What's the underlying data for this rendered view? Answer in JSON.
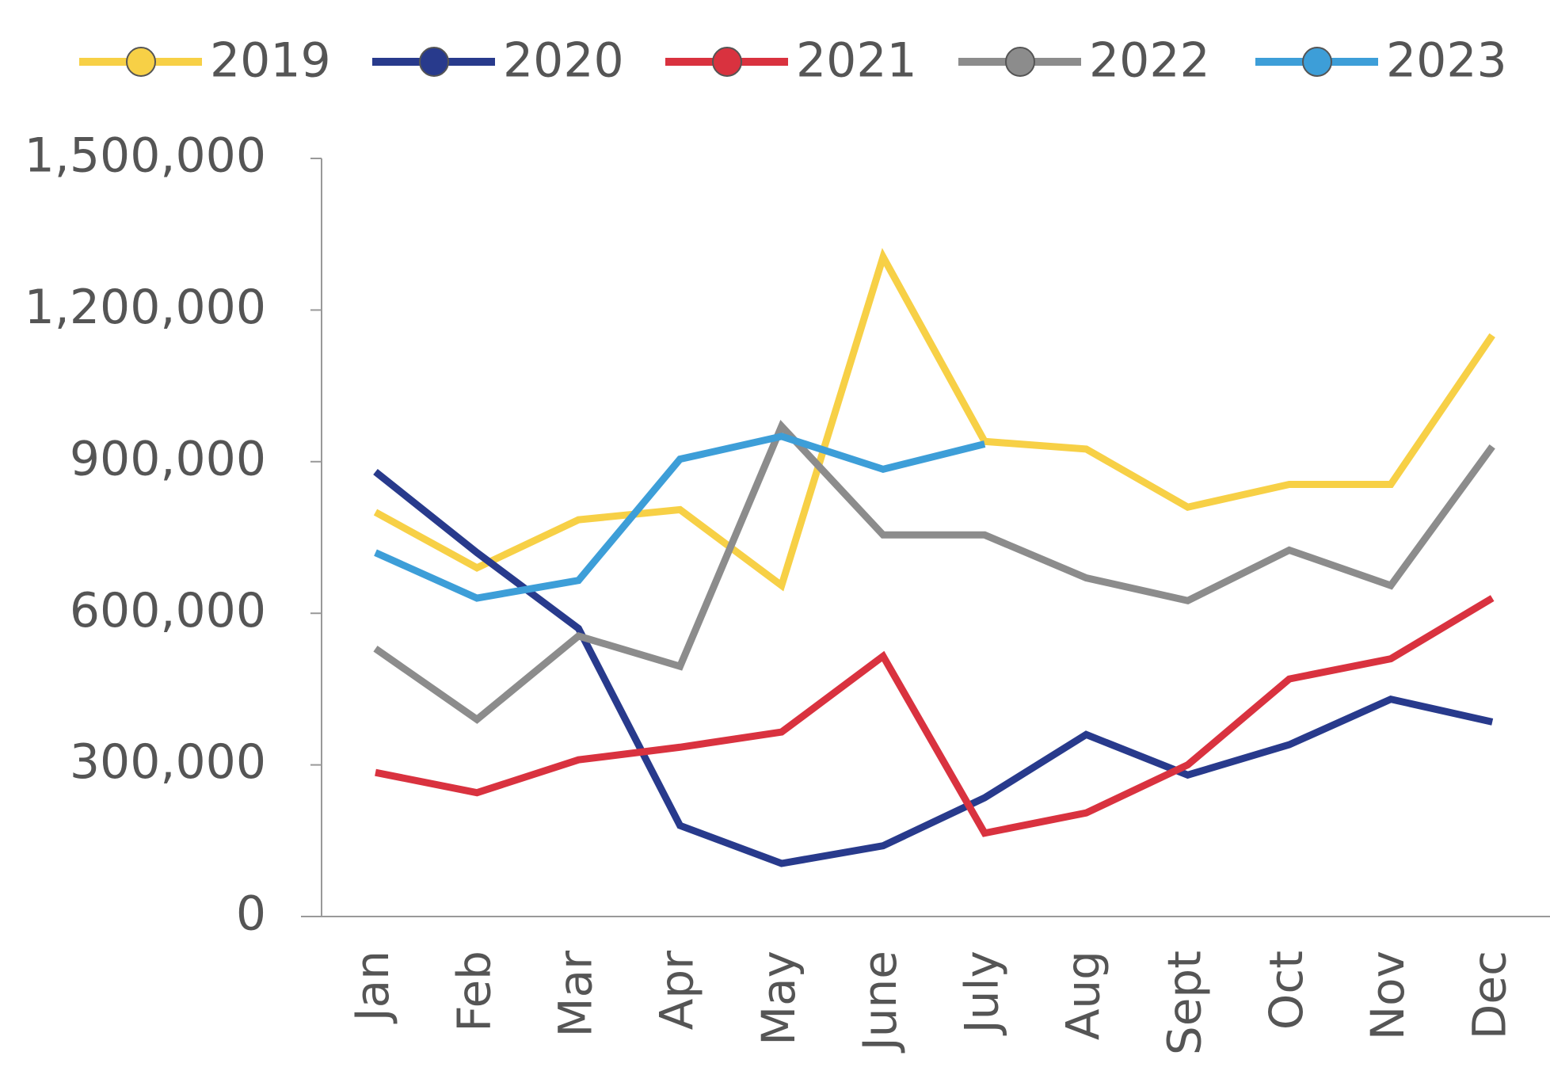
{
  "chart_data": {
    "type": "line",
    "categories": [
      "Jan",
      "Feb",
      "Mar",
      "Apr",
      "May",
      "June",
      "July",
      "Aug",
      "Sept",
      "Oct",
      "Nov",
      "Dec"
    ],
    "series": [
      {
        "name": "2019",
        "color": "#f7d046",
        "values": [
          800000,
          690000,
          785000,
          805000,
          655000,
          1305000,
          940000,
          925000,
          810000,
          855000,
          855000,
          1150000
        ]
      },
      {
        "name": "2020",
        "color": "#283a8c",
        "values": [
          880000,
          720000,
          570000,
          180000,
          105000,
          140000,
          235000,
          360000,
          280000,
          340000,
          430000,
          385000
        ]
      },
      {
        "name": "2021",
        "color": "#d9323f",
        "values": [
          285000,
          245000,
          310000,
          335000,
          365000,
          515000,
          165000,
          205000,
          300000,
          470000,
          510000,
          630000
        ]
      },
      {
        "name": "2022",
        "color": "#8c8c8c",
        "values": [
          530000,
          390000,
          555000,
          495000,
          970000,
          755000,
          755000,
          670000,
          625000,
          725000,
          655000,
          930000
        ]
      },
      {
        "name": "2023",
        "color": "#3d9ed8",
        "values": [
          720000,
          630000,
          665000,
          905000,
          950000,
          885000,
          935000,
          null,
          null,
          null,
          null,
          null
        ]
      }
    ],
    "ylim": [
      0,
      1500000
    ],
    "yticks": [
      0,
      {
        "value": 300000,
        "label": "300,000"
      },
      {
        "value": 600000,
        "label": "600,000"
      },
      {
        "value": 900000,
        "label": "900,000"
      },
      {
        "value": 1200000,
        "label": "1,200,000"
      },
      {
        "value": 1500000,
        "label": "1,500,000"
      }
    ],
    "grid": false,
    "legend": "top"
  }
}
